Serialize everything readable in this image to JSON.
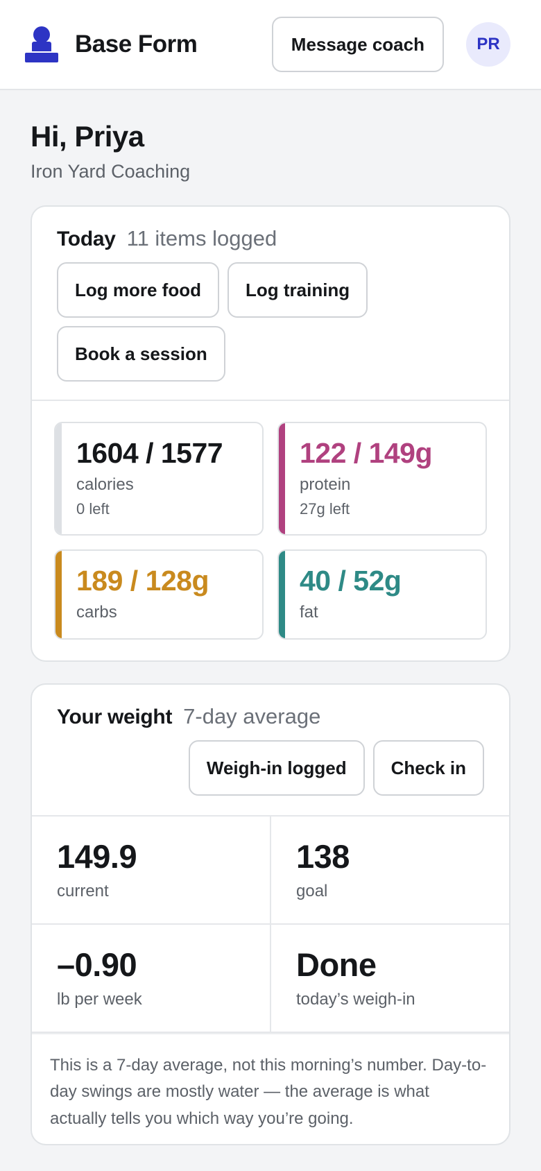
{
  "header": {
    "brand": "Base Form",
    "message_coach": "Message coach",
    "avatar_initials": "PR",
    "accent": "#2d34c4"
  },
  "greeting": {
    "title": "Hi, Priya",
    "org": "Iron Yard Coaching"
  },
  "today": {
    "title": "Today",
    "subtitle": "11 items logged",
    "actions": [
      "Log more food",
      "Log training",
      "Book a session"
    ],
    "macros": [
      {
        "value": "1604 / 1577",
        "label": "calories",
        "left": "0 left",
        "color": "#15171a",
        "bar": "#dde0e4"
      },
      {
        "value": "122 / 149g",
        "label": "protein",
        "left": "27g left",
        "color": "#b0417f",
        "bar": "#b0417f"
      },
      {
        "value": "189 / 128g",
        "label": "carbs",
        "left": "",
        "color": "#c98a1e",
        "bar": "#c98a1e"
      },
      {
        "value": "40 / 52g",
        "label": "fat",
        "left": "",
        "color": "#2e8a86",
        "bar": "#2e8a86"
      }
    ]
  },
  "weight": {
    "title": "Your weight",
    "subtitle": "7-day average",
    "actions": [
      "Weigh-in logged",
      "Check in"
    ],
    "stats": [
      {
        "value": "149.9",
        "label": "current"
      },
      {
        "value": "138",
        "label": "goal"
      },
      {
        "value": "–0.90",
        "label": "lb per week"
      },
      {
        "value": "Done",
        "label": "today’s weigh-in"
      }
    ],
    "note": "This is a 7-day average, not this morning’s number. Day-to-day swings are mostly water — the average is what actually tells you which way you’re going."
  }
}
